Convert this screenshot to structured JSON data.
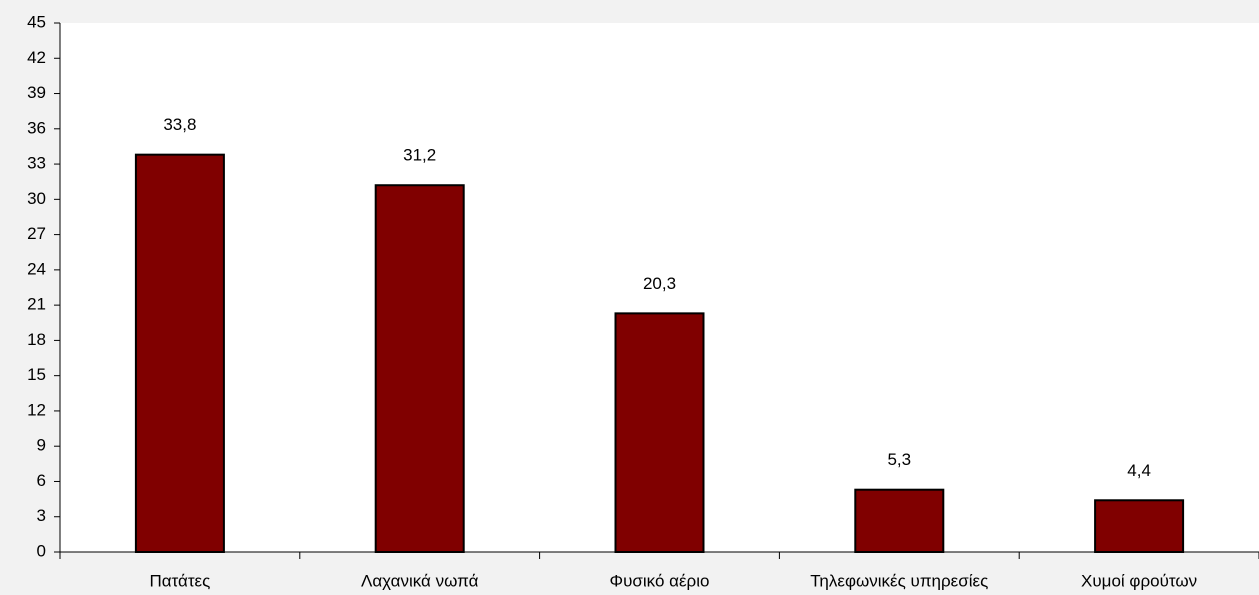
{
  "chart_data": {
    "type": "bar",
    "categories": [
      "Πατάτες",
      "Λαχανικά νωπά",
      "Φυσικό αέριο",
      "Τηλεφωνικές υπηρεσίες",
      "Χυμοί φρούτων"
    ],
    "values": [
      33.8,
      31.2,
      20.3,
      5.3,
      4.4
    ],
    "value_labels": [
      "33,8",
      "31,2",
      "20,3",
      "5,3",
      "4,4"
    ],
    "color": "#800000",
    "ylim": [
      0,
      45
    ],
    "yticks": [
      0,
      3,
      6,
      9,
      12,
      15,
      18,
      21,
      24,
      27,
      30,
      33,
      36,
      39,
      42,
      45
    ],
    "grid": false
  }
}
